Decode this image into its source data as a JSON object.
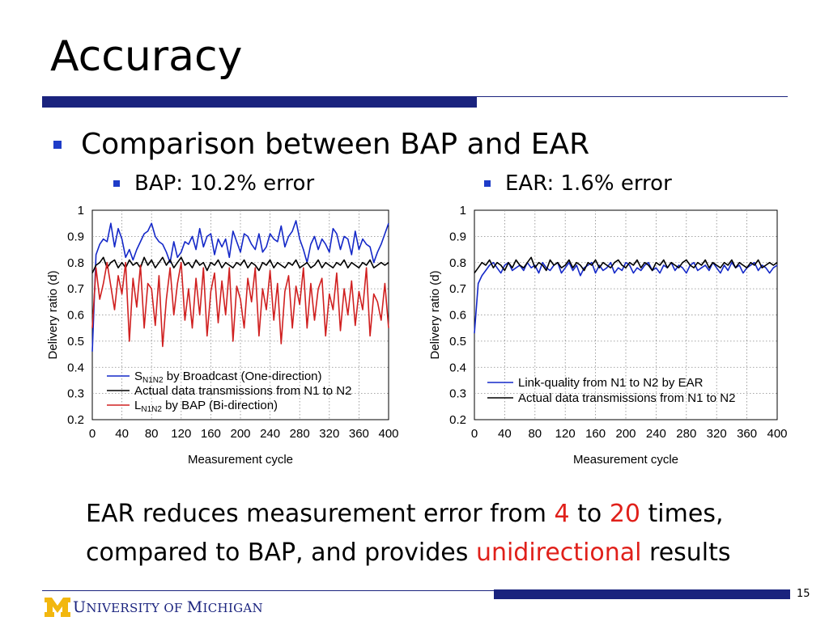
{
  "slide": {
    "title": "Accuracy",
    "bullet": "Comparison between BAP and EAR",
    "sub_left": "BAP: 10.2% error",
    "sub_right": "EAR: 1.6% error",
    "conclusion": {
      "part1": "EAR reduces measurement error from ",
      "num1": "4",
      "part2": " to ",
      "num2": "20",
      "part3": " times,",
      "part4": "compared to BAP, and provides ",
      "highlight": "unidirectional",
      "part5": " results"
    },
    "page_number": "15",
    "logo_parts": [
      "U",
      "NIVERSITY OF ",
      "M",
      "ICHIGAN"
    ]
  },
  "colors": {
    "accent": "#1a237e",
    "bullet": "#1e3cc8",
    "highlight": "#e0201a",
    "logo_gold": "#f2b70f",
    "series_blue": "#1428c8",
    "series_black": "#000000",
    "series_red": "#d02020"
  },
  "chart_data": [
    {
      "type": "line",
      "xlabel": "Measurement cycle",
      "ylabel": "Delivery ratio (d)",
      "xlim": [
        0,
        400
      ],
      "ylim": [
        0.2,
        1
      ],
      "xticks": [
        0,
        40,
        80,
        120,
        160,
        200,
        240,
        280,
        320,
        360,
        400
      ],
      "yticks": [
        0.2,
        0.3,
        0.4,
        0.5,
        0.6,
        0.7,
        0.8,
        0.9,
        1
      ],
      "grid": true,
      "legend_position": "bottom-left",
      "series": [
        {
          "legend": [
            "S",
            "N1N2",
            " by Broadcast (One-direction)"
          ],
          "color": "#1428c8",
          "x": [
            0,
            5,
            10,
            15,
            20,
            25,
            30,
            35,
            40,
            45,
            50,
            55,
            60,
            65,
            70,
            75,
            80,
            85,
            90,
            95,
            100,
            105,
            110,
            115,
            120,
            125,
            130,
            135,
            140,
            145,
            150,
            155,
            160,
            165,
            170,
            175,
            180,
            185,
            190,
            195,
            200,
            205,
            210,
            215,
            220,
            225,
            230,
            235,
            240,
            245,
            250,
            255,
            260,
            265,
            270,
            275,
            280,
            285,
            290,
            295,
            300,
            305,
            310,
            315,
            320,
            325,
            330,
            335,
            340,
            345,
            350,
            355,
            360,
            365,
            370,
            375,
            380,
            385,
            390,
            395,
            400
          ],
          "y": [
            0.46,
            0.83,
            0.87,
            0.89,
            0.88,
            0.95,
            0.86,
            0.93,
            0.89,
            0.82,
            0.85,
            0.81,
            0.85,
            0.88,
            0.91,
            0.92,
            0.95,
            0.9,
            0.88,
            0.87,
            0.84,
            0.8,
            0.88,
            0.82,
            0.84,
            0.88,
            0.87,
            0.9,
            0.85,
            0.93,
            0.86,
            0.9,
            0.91,
            0.83,
            0.89,
            0.86,
            0.89,
            0.82,
            0.92,
            0.88,
            0.84,
            0.91,
            0.9,
            0.87,
            0.85,
            0.91,
            0.84,
            0.86,
            0.91,
            0.89,
            0.88,
            0.94,
            0.86,
            0.9,
            0.92,
            0.96,
            0.89,
            0.85,
            0.8,
            0.87,
            0.9,
            0.85,
            0.89,
            0.87,
            0.84,
            0.93,
            0.91,
            0.85,
            0.9,
            0.89,
            0.83,
            0.92,
            0.85,
            0.89,
            0.87,
            0.86,
            0.8,
            0.84,
            0.87,
            0.91,
            0.95
          ]
        },
        {
          "legend": [
            "",
            "",
            "Actual data transmissions from N1 to N2"
          ],
          "color": "#000000",
          "x": [
            0,
            5,
            10,
            15,
            20,
            25,
            30,
            35,
            40,
            45,
            50,
            55,
            60,
            65,
            70,
            75,
            80,
            85,
            90,
            95,
            100,
            105,
            110,
            115,
            120,
            125,
            130,
            135,
            140,
            145,
            150,
            155,
            160,
            165,
            170,
            175,
            180,
            185,
            190,
            195,
            200,
            205,
            210,
            215,
            220,
            225,
            230,
            235,
            240,
            245,
            250,
            255,
            260,
            265,
            270,
            275,
            280,
            285,
            290,
            295,
            300,
            305,
            310,
            315,
            320,
            325,
            330,
            335,
            340,
            345,
            350,
            355,
            360,
            365,
            370,
            375,
            380,
            385,
            390,
            395,
            400
          ],
          "y": [
            0.76,
            0.79,
            0.8,
            0.82,
            0.78,
            0.8,
            0.81,
            0.78,
            0.8,
            0.78,
            0.81,
            0.79,
            0.8,
            0.78,
            0.82,
            0.79,
            0.81,
            0.78,
            0.8,
            0.82,
            0.79,
            0.81,
            0.78,
            0.8,
            0.82,
            0.79,
            0.8,
            0.78,
            0.81,
            0.79,
            0.8,
            0.77,
            0.8,
            0.79,
            0.81,
            0.78,
            0.8,
            0.79,
            0.78,
            0.8,
            0.79,
            0.81,
            0.78,
            0.8,
            0.79,
            0.77,
            0.8,
            0.79,
            0.81,
            0.78,
            0.8,
            0.79,
            0.78,
            0.8,
            0.79,
            0.81,
            0.78,
            0.79,
            0.8,
            0.78,
            0.79,
            0.81,
            0.78,
            0.8,
            0.79,
            0.78,
            0.8,
            0.79,
            0.81,
            0.78,
            0.8,
            0.79,
            0.78,
            0.8,
            0.79,
            0.81,
            0.78,
            0.79,
            0.8,
            0.79,
            0.8
          ]
        },
        {
          "legend": [
            "L",
            "N1N2",
            " by BAP (Bi-direction)"
          ],
          "color": "#d02020",
          "x": [
            0,
            5,
            10,
            15,
            20,
            25,
            30,
            35,
            40,
            45,
            50,
            55,
            60,
            65,
            70,
            75,
            80,
            85,
            90,
            95,
            100,
            105,
            110,
            115,
            120,
            125,
            130,
            135,
            140,
            145,
            150,
            155,
            160,
            165,
            170,
            175,
            180,
            185,
            190,
            195,
            200,
            205,
            210,
            215,
            220,
            225,
            230,
            235,
            240,
            245,
            250,
            255,
            260,
            265,
            270,
            275,
            280,
            285,
            290,
            295,
            300,
            305,
            310,
            315,
            320,
            325,
            330,
            335,
            340,
            345,
            350,
            355,
            360,
            365,
            370,
            375,
            380,
            385,
            390,
            395,
            400
          ],
          "y": [
            0.55,
            0.78,
            0.66,
            0.72,
            0.8,
            0.71,
            0.62,
            0.75,
            0.68,
            0.8,
            0.5,
            0.74,
            0.63,
            0.79,
            0.55,
            0.72,
            0.7,
            0.56,
            0.75,
            0.48,
            0.66,
            0.78,
            0.6,
            0.72,
            0.8,
            0.58,
            0.7,
            0.55,
            0.74,
            0.6,
            0.78,
            0.52,
            0.69,
            0.76,
            0.57,
            0.73,
            0.6,
            0.78,
            0.5,
            0.71,
            0.66,
            0.55,
            0.74,
            0.65,
            0.78,
            0.52,
            0.7,
            0.62,
            0.77,
            0.58,
            0.72,
            0.49,
            0.69,
            0.75,
            0.55,
            0.71,
            0.64,
            0.78,
            0.55,
            0.72,
            0.58,
            0.7,
            0.74,
            0.52,
            0.68,
            0.62,
            0.76,
            0.54,
            0.7,
            0.6,
            0.73,
            0.56,
            0.69,
            0.62,
            0.78,
            0.52,
            0.68,
            0.65,
            0.58,
            0.72,
            0.55
          ]
        }
      ]
    },
    {
      "type": "line",
      "xlabel": "Measurement cycle",
      "ylabel": "Delivery ratio (d)",
      "xlim": [
        0,
        400
      ],
      "ylim": [
        0.2,
        1
      ],
      "xticks": [
        0,
        40,
        80,
        120,
        160,
        200,
        240,
        280,
        320,
        360,
        400
      ],
      "yticks": [
        0.2,
        0.3,
        0.4,
        0.5,
        0.6,
        0.7,
        0.8,
        0.9,
        1
      ],
      "grid": true,
      "legend_position": "bottom-right",
      "series": [
        {
          "legend": [
            "",
            "",
            "Link-quality from N1 to N2 by EAR"
          ],
          "color": "#1428c8",
          "x": [
            0,
            5,
            10,
            15,
            20,
            25,
            30,
            35,
            40,
            45,
            50,
            55,
            60,
            65,
            70,
            75,
            80,
            85,
            90,
            95,
            100,
            105,
            110,
            115,
            120,
            125,
            130,
            135,
            140,
            145,
            150,
            155,
            160,
            165,
            170,
            175,
            180,
            185,
            190,
            195,
            200,
            205,
            210,
            215,
            220,
            225,
            230,
            235,
            240,
            245,
            250,
            255,
            260,
            265,
            270,
            275,
            280,
            285,
            290,
            295,
            300,
            305,
            310,
            315,
            320,
            325,
            330,
            335,
            340,
            345,
            350,
            355,
            360,
            365,
            370,
            375,
            380,
            385,
            390,
            395,
            400
          ],
          "y": [
            0.53,
            0.72,
            0.75,
            0.77,
            0.79,
            0.8,
            0.78,
            0.76,
            0.79,
            0.8,
            0.77,
            0.78,
            0.79,
            0.77,
            0.8,
            0.78,
            0.79,
            0.76,
            0.8,
            0.78,
            0.77,
            0.79,
            0.8,
            0.76,
            0.78,
            0.8,
            0.77,
            0.79,
            0.75,
            0.78,
            0.79,
            0.8,
            0.76,
            0.79,
            0.77,
            0.78,
            0.8,
            0.76,
            0.78,
            0.77,
            0.8,
            0.79,
            0.76,
            0.78,
            0.77,
            0.79,
            0.8,
            0.77,
            0.78,
            0.76,
            0.79,
            0.78,
            0.8,
            0.77,
            0.79,
            0.78,
            0.76,
            0.79,
            0.8,
            0.77,
            0.78,
            0.79,
            0.77,
            0.8,
            0.78,
            0.76,
            0.79,
            0.77,
            0.8,
            0.78,
            0.79,
            0.76,
            0.78,
            0.79,
            0.8,
            0.77,
            0.79,
            0.78,
            0.76,
            0.78,
            0.79
          ]
        },
        {
          "legend": [
            "",
            "",
            "Actual data transmissions from N1 to N2"
          ],
          "color": "#000000",
          "x": [
            0,
            5,
            10,
            15,
            20,
            25,
            30,
            35,
            40,
            45,
            50,
            55,
            60,
            65,
            70,
            75,
            80,
            85,
            90,
            95,
            100,
            105,
            110,
            115,
            120,
            125,
            130,
            135,
            140,
            145,
            150,
            155,
            160,
            165,
            170,
            175,
            180,
            185,
            190,
            195,
            200,
            205,
            210,
            215,
            220,
            225,
            230,
            235,
            240,
            245,
            250,
            255,
            260,
            265,
            270,
            275,
            280,
            285,
            290,
            295,
            300,
            305,
            310,
            315,
            320,
            325,
            330,
            335,
            340,
            345,
            350,
            355,
            360,
            365,
            370,
            375,
            380,
            385,
            390,
            395,
            400
          ],
          "y": [
            0.76,
            0.78,
            0.8,
            0.79,
            0.81,
            0.78,
            0.8,
            0.79,
            0.77,
            0.8,
            0.78,
            0.81,
            0.79,
            0.78,
            0.8,
            0.82,
            0.78,
            0.8,
            0.79,
            0.77,
            0.81,
            0.79,
            0.8,
            0.78,
            0.79,
            0.81,
            0.78,
            0.8,
            0.79,
            0.77,
            0.8,
            0.79,
            0.81,
            0.78,
            0.8,
            0.79,
            0.78,
            0.8,
            0.81,
            0.79,
            0.78,
            0.8,
            0.79,
            0.81,
            0.78,
            0.8,
            0.79,
            0.77,
            0.8,
            0.79,
            0.81,
            0.78,
            0.8,
            0.79,
            0.78,
            0.8,
            0.81,
            0.79,
            0.78,
            0.8,
            0.79,
            0.81,
            0.78,
            0.8,
            0.79,
            0.78,
            0.8,
            0.79,
            0.81,
            0.78,
            0.8,
            0.79,
            0.78,
            0.8,
            0.79,
            0.81,
            0.78,
            0.79,
            0.8,
            0.79,
            0.8
          ]
        }
      ]
    }
  ]
}
